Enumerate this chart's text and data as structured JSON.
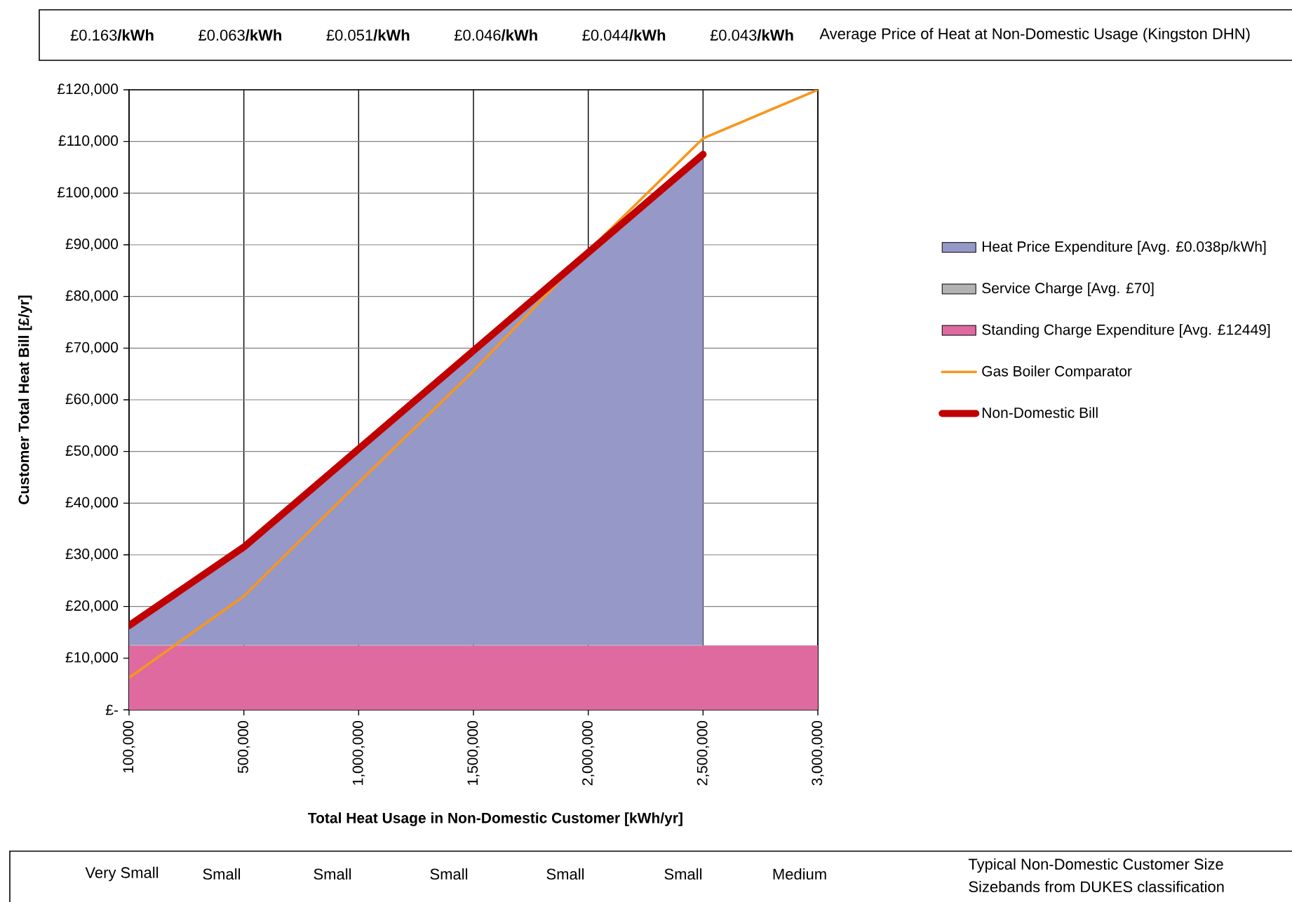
{
  "chart_data": {
    "type": "area",
    "stacked": true,
    "xlabel": "Total Heat Usage in  Non-Domestic Customer [kWh/yr]",
    "ylabel": "Customer Total Heat Bill [£/yr]",
    "categories": [
      "100,000",
      "500,000",
      "1,000,000",
      "1,500,000",
      "2,000,000",
      "2,500,000",
      "3,000,000"
    ],
    "ylim": [
      0,
      120000
    ],
    "yticks": [
      {
        "value": 0,
        "label": "£-"
      },
      {
        "value": 10000,
        "label": "£10,000"
      },
      {
        "value": 20000,
        "label": "£20,000"
      },
      {
        "value": 30000,
        "label": "£30,000"
      },
      {
        "value": 40000,
        "label": "£40,000"
      },
      {
        "value": 50000,
        "label": "£50,000"
      },
      {
        "value": 60000,
        "label": "£60,000"
      },
      {
        "value": 70000,
        "label": "£70,000"
      },
      {
        "value": 80000,
        "label": "£80,000"
      },
      {
        "value": 90000,
        "label": "£90,000"
      },
      {
        "value": 100000,
        "label": "£100,000"
      },
      {
        "value": 110000,
        "label": "£110,000"
      },
      {
        "value": 120000,
        "label": "£120,000"
      }
    ],
    "grid": true,
    "legend": "right",
    "series": [
      {
        "name": "Standing Charge Expenditure [Avg. £12449]",
        "color": "#de6aa0",
        "values": [
          12449,
          12449,
          12449,
          12449,
          12449,
          12449,
          12449
        ]
      },
      {
        "name": "Service Charge [Avg. £70]",
        "color": "#b2b2b2",
        "values": [
          70,
          70,
          70,
          70,
          70,
          70,
          70
        ]
      },
      {
        "name": "Heat Price Expenditure [Avg. £0.038p/kWh]",
        "color": "#9698c8",
        "values": [
          3800,
          19000,
          38000,
          57000,
          76000,
          95000,
          null
        ]
      },
      {
        "name": "Gas Boiler Comparator",
        "type": "line",
        "color": "#f7961e",
        "values": [
          6200,
          22000,
          44000,
          65600,
          88800,
          110600,
          120000
        ]
      },
      {
        "name": "Non-Domestic Bill",
        "type": "line",
        "color": "#c00000",
        "values": [
          16300,
          31500,
          50500,
          69500,
          88500,
          107500,
          null
        ]
      }
    ],
    "annotations": [
      "£0.163**/kWh**",
      "£0.063**/kWh**",
      "£0.051**/kWh**",
      "£0.046**/kWh**",
      "£0.044**/kWh**",
      "£0.043**/kWh**",
      "Average Price of Heat at Non-Domestic Usage (Kingston DHN)",
      "Very Small",
      "Small",
      "Small",
      "Small",
      "Small",
      "Small",
      "Medium",
      "Typical Non-Domestic Customer Size",
      "Sizebands from DUKES classification"
    ]
  }
}
